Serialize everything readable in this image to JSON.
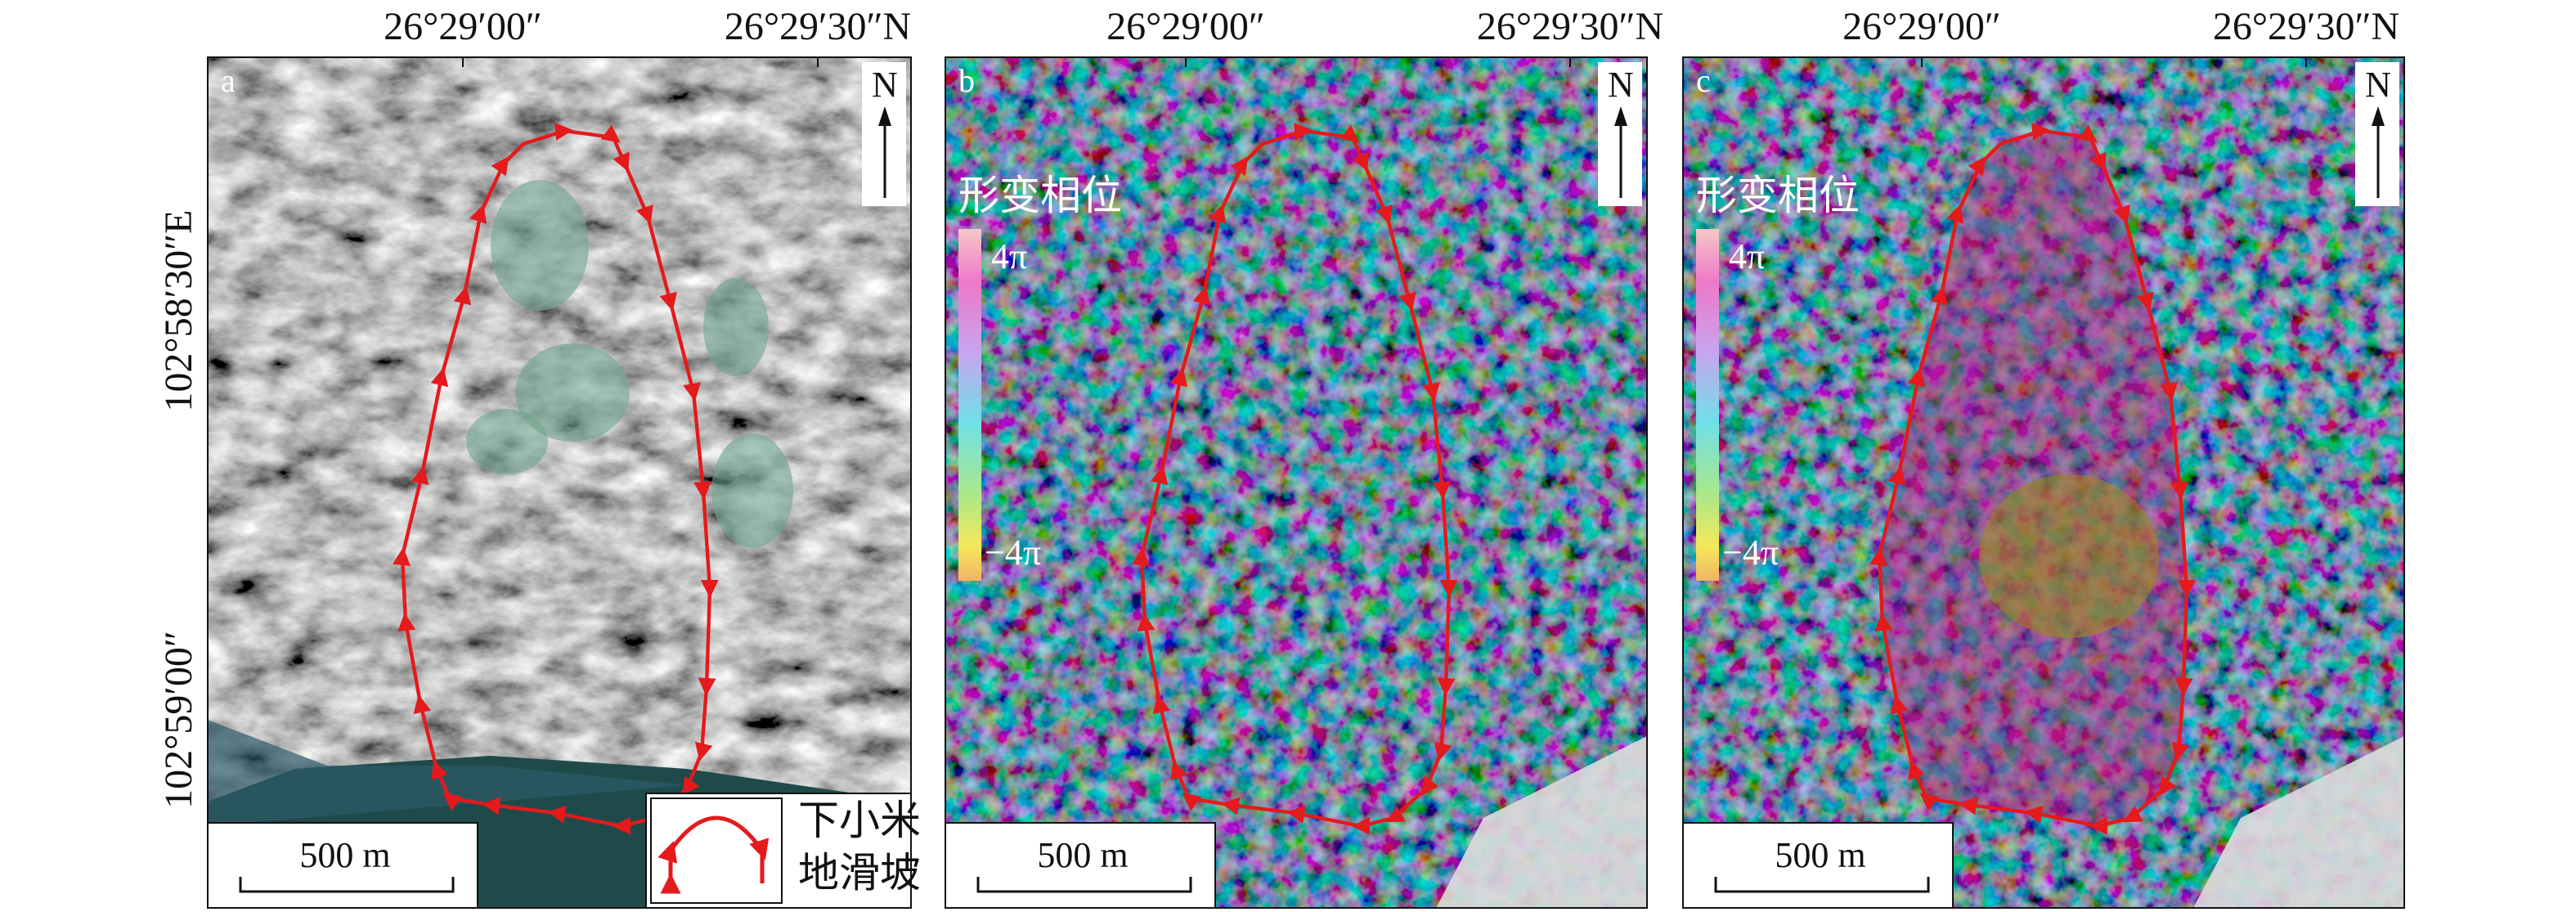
{
  "left_labels": [
    "102°58′30″E",
    "102°59′00″"
  ],
  "panels": [
    {
      "letter": "a",
      "top_labels": [
        "26°29′00″",
        "26°29′30″N"
      ],
      "north": "N",
      "scale_bar": "500 m",
      "legend": {
        "lines": [
          "下小米",
          "地滑坡"
        ]
      }
    },
    {
      "letter": "b",
      "top_labels": [
        "26°29′00″",
        "26°29′30″N"
      ],
      "north": "N",
      "scale_bar": "500 m",
      "colorbar": {
        "title": "形变相位",
        "max": "4π",
        "min": "−4π"
      }
    },
    {
      "letter": "c",
      "top_labels": [
        "26°29′00″",
        "26°29′30″N"
      ],
      "north": "N",
      "scale_bar": "500 m",
      "colorbar": {
        "title": "形变相位",
        "max": "4π",
        "min": "−4π"
      }
    }
  ]
}
